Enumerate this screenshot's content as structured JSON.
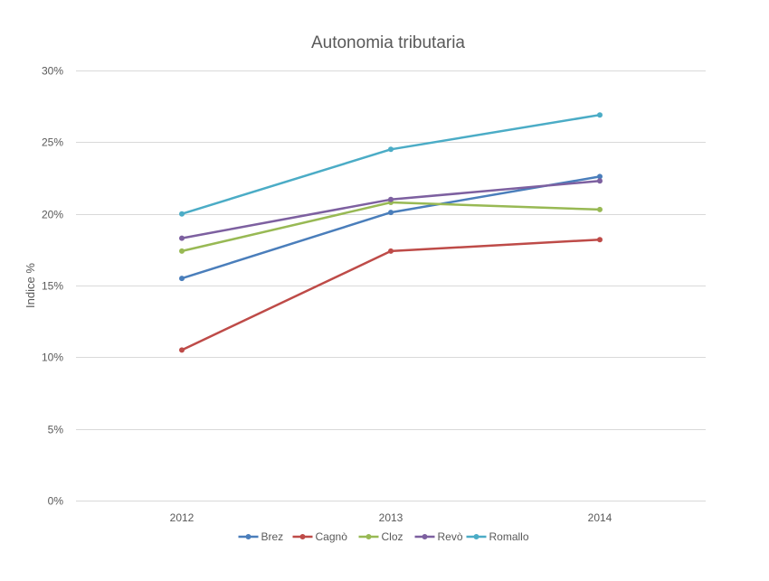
{
  "chart_data": {
    "type": "line",
    "title": "Autonomia tributaria",
    "xlabel": "",
    "ylabel": "Indice %",
    "categories": [
      "2012",
      "2013",
      "2014"
    ],
    "ylim": [
      0,
      30
    ],
    "yticks": [
      0,
      5,
      10,
      15,
      20,
      25,
      30
    ],
    "ytick_labels": [
      "0%",
      "5%",
      "10%",
      "15%",
      "20%",
      "25%",
      "30%"
    ],
    "grid": true,
    "legend_position": "bottom",
    "series": [
      {
        "name": "Brez",
        "color": "#4a7ebb",
        "values": [
          15.5,
          20.1,
          22.6
        ]
      },
      {
        "name": "Cagnò",
        "color": "#be4b48",
        "values": [
          10.5,
          17.4,
          18.2
        ]
      },
      {
        "name": "Cloz",
        "color": "#98b954",
        "values": [
          17.4,
          20.8,
          20.3
        ]
      },
      {
        "name": "Revò",
        "color": "#7d60a0",
        "values": [
          18.3,
          21.0,
          22.3
        ]
      },
      {
        "name": "Romallo",
        "color": "#4bacc6",
        "values": [
          20.0,
          24.5,
          26.9
        ]
      }
    ]
  }
}
